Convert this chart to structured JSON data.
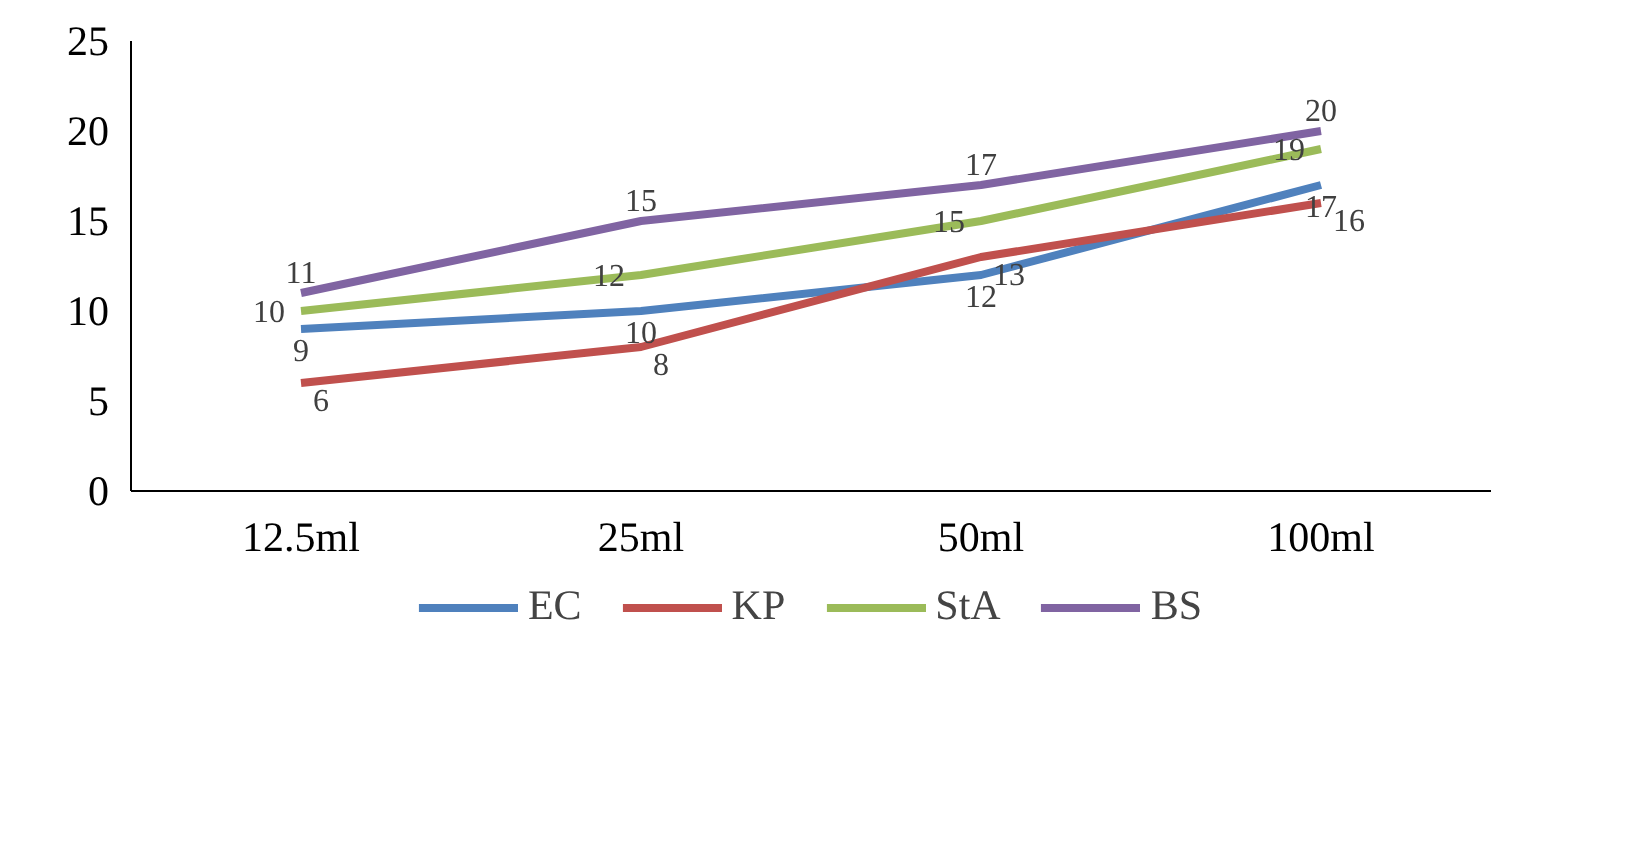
{
  "chart_data": {
    "type": "line",
    "categories": [
      "12.5ml",
      "25ml",
      "50ml",
      "100ml"
    ],
    "series": [
      {
        "name": "EC",
        "color": "#4f81bd",
        "values": [
          9,
          10,
          12,
          17
        ]
      },
      {
        "name": "KP",
        "color": "#c0504d",
        "values": [
          6,
          8,
          13,
          16
        ]
      },
      {
        "name": "StA",
        "color": "#9bbb59",
        "values": [
          10,
          12,
          15,
          19
        ]
      },
      {
        "name": "BS",
        "color": "#8064a2",
        "values": [
          11,
          15,
          17,
          20
        ]
      }
    ],
    "ylim": [
      0,
      25
    ],
    "yticks": [
      0,
      5,
      10,
      15,
      20,
      25
    ],
    "grid": false,
    "legend": "bottom",
    "data_labels": true,
    "marker": "none",
    "line_style": "solid"
  }
}
